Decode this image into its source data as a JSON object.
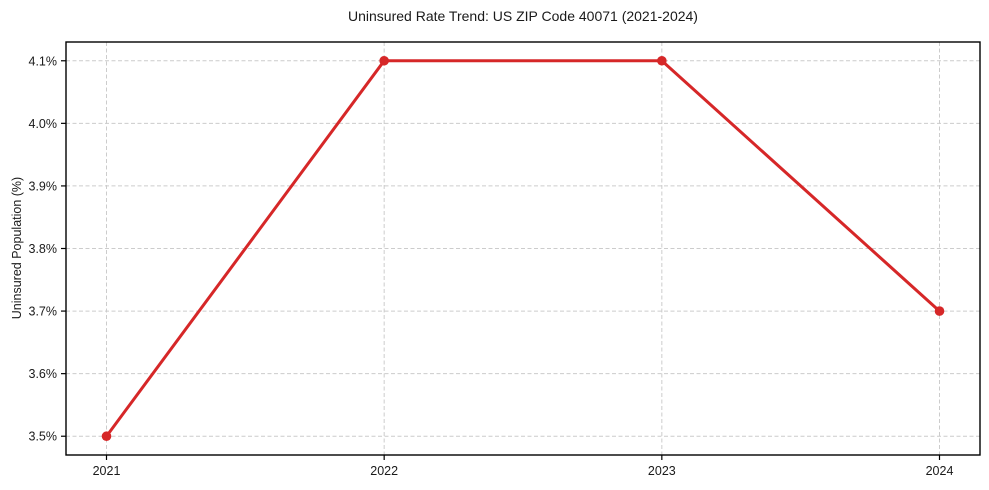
{
  "header": {
    "title": "Uninsured Rate Trend: US ZIP Code 40071 (2021-2024)"
  },
  "colors": {
    "line": "#d62728",
    "marker": "#d62728",
    "grid": "#cccccc",
    "spine": "#000000",
    "text": "#1a1a1a",
    "background": "#ffffff"
  },
  "chart_data": {
    "type": "line",
    "title": "Uninsured Rate Trend: US ZIP Code 40071 (2021-2024)",
    "xlabel": "",
    "ylabel": "Uninsured Population (%)",
    "x": [
      2021,
      2022,
      2023,
      2024
    ],
    "series": [
      {
        "name": "Uninsured Population (%)",
        "values": [
          3.5,
          4.1,
          4.1,
          3.7
        ]
      }
    ],
    "xtick_labels": [
      "2021",
      "2022",
      "2023",
      "2024"
    ],
    "ytick_values": [
      3.5,
      3.6,
      3.7,
      3.8,
      3.9,
      4.0,
      4.1
    ],
    "ytick_labels": [
      "3.5%",
      "3.6%",
      "3.7%",
      "3.8%",
      "3.9%",
      "4.0%",
      "4.1%"
    ],
    "ylim": [
      3.47,
      4.13
    ],
    "grid": true,
    "grid_style": "dashed",
    "legend": false
  }
}
